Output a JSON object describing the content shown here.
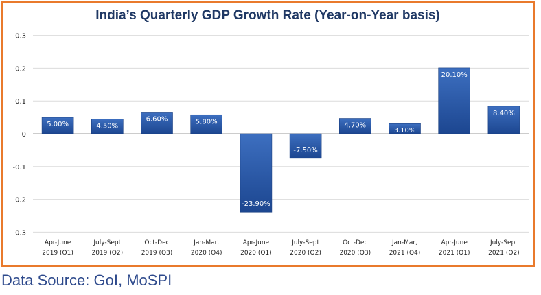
{
  "chart_data": {
    "type": "bar",
    "title": "India’s Quarterly GDP Growth Rate (Year-on-Year basis)",
    "categories": [
      [
        "Apr-June",
        "2019 (Q1)"
      ],
      [
        "July-Sept",
        "2019 (Q2)"
      ],
      [
        "Oct-Dec",
        "2019 (Q3)"
      ],
      [
        "Jan-Mar,",
        "2020 (Q4)"
      ],
      [
        "Apr-June",
        "2020 (Q1)"
      ],
      [
        "July-Sept",
        "2020 (Q2)"
      ],
      [
        "Oct-Dec",
        "2020 (Q3)"
      ],
      [
        "Jan-Mar,",
        "2021 (Q4)"
      ],
      [
        "Apr-June",
        "2021 (Q1)"
      ],
      [
        "July-Sept",
        "2021 (Q2)"
      ]
    ],
    "values": [
      0.05,
      0.045,
      0.066,
      0.058,
      -0.239,
      -0.075,
      0.047,
      0.031,
      0.201,
      0.084
    ],
    "data_labels": [
      "5.00%",
      "4.50%",
      "6.60%",
      "5.80%",
      "-23.90%",
      "-7.50%",
      "4.70%",
      "3.10%",
      "20.10%",
      "8.40%"
    ],
    "yticks": [
      "0.3",
      "0.2",
      "0.1",
      "0",
      "-0.1",
      "-0.2",
      "-0.3"
    ],
    "ylim": [
      -0.3,
      0.3
    ],
    "grid": true,
    "bar_color": "#2a5aa8",
    "border_color": "#e97a2c"
  },
  "source": "Data Source: GoI, MoSPI"
}
